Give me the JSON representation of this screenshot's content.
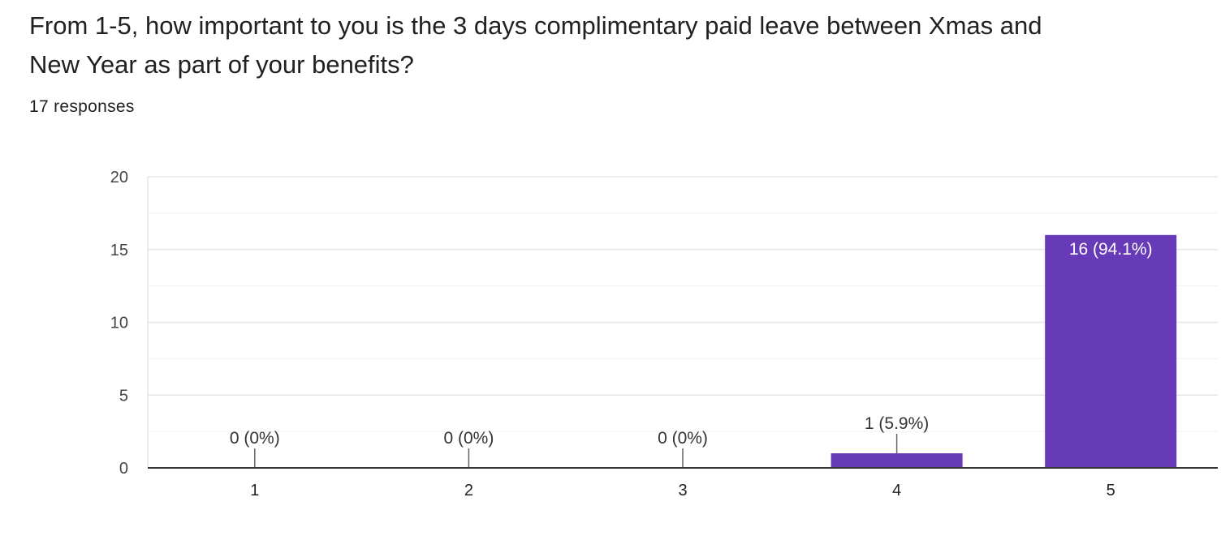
{
  "question": {
    "line1": "From 1-5, how important to you is the 3 days complimentary paid leave between Xmas and",
    "line2": "New Year as part of your benefits?"
  },
  "responses_text": "17 responses",
  "colors": {
    "bar": "#673ab7",
    "grid": "#e6e6e6",
    "axis": "#333333"
  },
  "chart_data": {
    "type": "bar",
    "categories": [
      "1",
      "2",
      "3",
      "4",
      "5"
    ],
    "values": [
      0,
      0,
      0,
      1,
      16
    ],
    "data_labels": [
      "0 (0%)",
      "0 (0%)",
      "0 (0%)",
      "1 (5.9%)",
      "16 (94.1%)"
    ],
    "y_ticks": [
      "0",
      "5",
      "10",
      "15",
      "20"
    ],
    "ylim": [
      0,
      20
    ],
    "title": "",
    "xlabel": "",
    "ylabel": "",
    "grid": true
  }
}
